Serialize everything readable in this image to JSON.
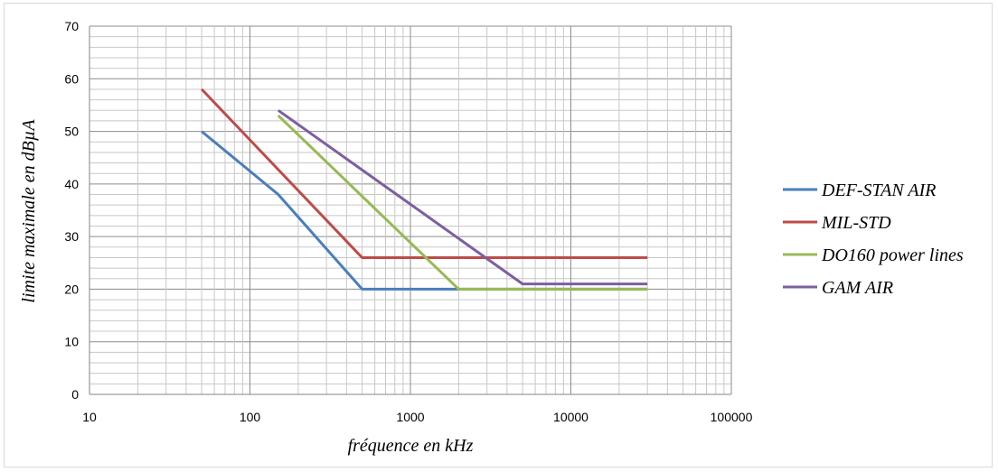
{
  "chart_data": {
    "type": "line",
    "xscale": "log",
    "xlim": [
      10,
      100000
    ],
    "ylim": [
      0,
      70
    ],
    "xticks": [
      "10",
      "100",
      "1000",
      "10000",
      "100000"
    ],
    "yticks": [
      "0",
      "10",
      "20",
      "30",
      "40",
      "50",
      "60",
      "70"
    ],
    "xlabel": "fréquence en kHz",
    "ylabel": "limite maximale en dBµA",
    "grid": true,
    "legend_position": "right",
    "series": [
      {
        "name": "DEF-STAN AIR",
        "color": "#4a7ebb",
        "points": [
          [
            50,
            50
          ],
          [
            150,
            38
          ],
          [
            500,
            20
          ],
          [
            30000,
            20
          ]
        ]
      },
      {
        "name": "MIL-STD",
        "color": "#be4b48",
        "points": [
          [
            50,
            58
          ],
          [
            500,
            26
          ],
          [
            30000,
            26
          ]
        ]
      },
      {
        "name": "DO160 power lines",
        "color": "#98b954",
        "points": [
          [
            150,
            53
          ],
          [
            2000,
            20
          ],
          [
            30000,
            20
          ]
        ]
      },
      {
        "name": "GAM AIR",
        "color": "#7d5fa0",
        "points": [
          [
            150,
            54
          ],
          [
            5000,
            21
          ],
          [
            30000,
            21
          ]
        ]
      }
    ]
  }
}
